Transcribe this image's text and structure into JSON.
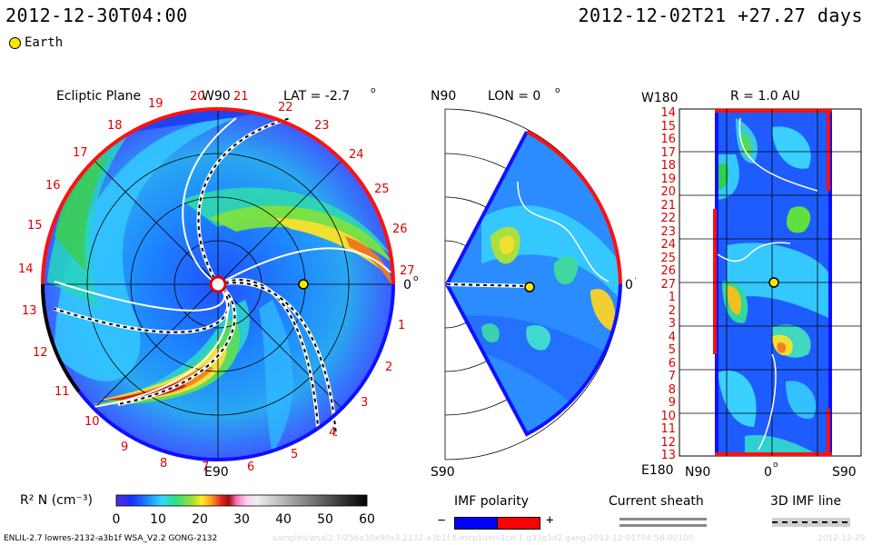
{
  "header": {
    "date_left": "2012-12-30T04:00",
    "date_right": "2012-12-02T21 +27.27 days"
  },
  "legend": {
    "earth_label": "Earth"
  },
  "panel_ecliptic": {
    "title": "Ecliptic Plane",
    "lat_label": "LAT = -2.7",
    "top_label": "W90",
    "bottom_label": "E90",
    "right_label": "0",
    "degree_mark": "o",
    "red_ticks": [
      "19",
      "20",
      "21",
      "22",
      "23",
      "24",
      "25",
      "26",
      "27",
      "1",
      "2",
      "3",
      "4",
      "5",
      "6",
      "7",
      "8",
      "9",
      "10",
      "11",
      "12",
      "13",
      "14",
      "15",
      "16",
      "17",
      "18"
    ]
  },
  "panel_meridional": {
    "top_label": "N90",
    "bottom_label": "S90",
    "lon_label": "LON = 0",
    "right_label": "0",
    "degree_mark": "o"
  },
  "panel_radial": {
    "title": "R = 1.0 AU",
    "top_left": "W180",
    "bottom_left": "E180",
    "y_ticks": [
      "14",
      "15",
      "16",
      "17",
      "18",
      "19",
      "20",
      "21",
      "22",
      "23",
      "24",
      "25",
      "26",
      "27",
      "1",
      "2",
      "3",
      "4",
      "5",
      "6",
      "7",
      "8",
      "9",
      "10",
      "11",
      "12",
      "13"
    ],
    "x_left": "N90",
    "x_mid": "0",
    "x_right": "S90",
    "degree_mark": "o"
  },
  "colorbar": {
    "label": "R² N (cm⁻³)",
    "ticks": [
      "0",
      "10",
      "20",
      "30",
      "40",
      "50",
      "60"
    ]
  },
  "imf_legend": {
    "polarity_title": "IMF polarity",
    "minus": "−",
    "plus": "+",
    "sheath_title": "Current sheath",
    "line_title": "3D IMF line"
  },
  "footer": {
    "left": "ENLIL-2.7 lowres-2132-a3b1f WSA_V2.2 GONG-2132",
    "middle": "samples/wsa/2.7/256x30x90x3.2132-a3b1f.8-mcp1unni1cd-1.g93q5d2.gang-2012-12-01T04:58:00100",
    "right": "2012-12-29"
  },
  "colors": {
    "positive_polarity": "#ff0000",
    "negative_polarity": "#0000ff",
    "earth": "#ffe600",
    "tick_text": "#dd0000"
  }
}
